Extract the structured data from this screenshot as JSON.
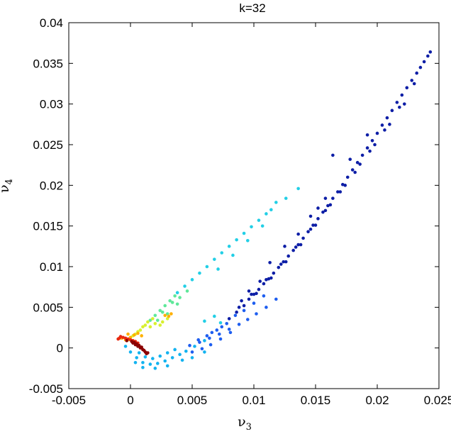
{
  "chart_data": {
    "type": "scatter",
    "title": "k=32",
    "xlabel": "ν",
    "xlabel_sub": "3",
    "ylabel": "ν",
    "ylabel_sub": "4",
    "xlim": [
      -0.005,
      0.025
    ],
    "ylim": [
      -0.005,
      0.04
    ],
    "xticks": [
      -0.005,
      0,
      0.005,
      0.01,
      0.015,
      0.02,
      0.025
    ],
    "xtick_labels": [
      "-0.005",
      "0",
      "0.005",
      "0.01",
      "0.015",
      "0.02",
      "0.025"
    ],
    "yticks": [
      -0.005,
      0,
      0.005,
      0.01,
      0.015,
      0.02,
      0.025,
      0.03,
      0.035,
      0.04
    ],
    "ytick_labels": [
      "-0.005",
      "0",
      "0.005",
      "0.01",
      "0.015",
      "0.02",
      "0.025",
      "0.03",
      "0.035",
      "0.04"
    ],
    "grid": false,
    "colormap": "jet",
    "colormap_stops": [
      "#00008f",
      "#0000ff",
      "#00ffff",
      "#ffff00",
      "#ff0000",
      "#800000"
    ],
    "series": [
      {
        "color": "#0d1ea6",
        "points": [
          [
            0.0243,
            0.0364
          ],
          [
            0.0241,
            0.0359
          ],
          [
            0.0238,
            0.0352
          ],
          [
            0.0235,
            0.0345
          ],
          [
            0.0232,
            0.0338
          ],
          [
            0.0228,
            0.0329
          ],
          [
            0.0224,
            0.032
          ],
          [
            0.022,
            0.0311
          ],
          [
            0.0216,
            0.0302
          ],
          [
            0.0212,
            0.0292
          ],
          [
            0.0208,
            0.0283
          ],
          [
            0.0204,
            0.0274
          ],
          [
            0.02,
            0.0264
          ],
          [
            0.0196,
            0.0255
          ],
          [
            0.0192,
            0.0246
          ],
          [
            0.0188,
            0.0237
          ],
          [
            0.0184,
            0.0228
          ],
          [
            0.018,
            0.0219
          ],
          [
            0.0176,
            0.021
          ],
          [
            0.0172,
            0.0201
          ],
          [
            0.0168,
            0.0192
          ],
          [
            0.0164,
            0.0184
          ],
          [
            0.016,
            0.0175
          ],
          [
            0.0156,
            0.0167
          ],
          [
            0.0152,
            0.0159
          ],
          [
            0.0148,
            0.0151
          ],
          [
            0.0144,
            0.0143
          ],
          [
            0.014,
            0.0135
          ],
          [
            0.0136,
            0.0127
          ],
          [
            0.0132,
            0.012
          ],
          [
            0.0128,
            0.0113
          ],
          [
            0.0124,
            0.0106
          ],
          [
            0.012,
            0.0099
          ],
          [
            0.0116,
            0.0092
          ],
          [
            0.0112,
            0.0085
          ],
          [
            0.0108,
            0.0079
          ],
          [
            0.0104,
            0.0072
          ],
          [
            0.01,
            0.0066
          ],
          [
            0.0096,
            0.006
          ],
          [
            0.0222,
            0.03
          ],
          [
            0.021,
            0.0275
          ],
          [
            0.0198,
            0.025
          ],
          [
            0.0186,
            0.0226
          ],
          [
            0.0174,
            0.02
          ],
          [
            0.0162,
            0.0176
          ],
          [
            0.015,
            0.0151
          ],
          [
            0.0138,
            0.0127
          ],
          [
            0.0126,
            0.0106
          ],
          [
            0.0114,
            0.0086
          ],
          [
            0.0102,
            0.0067
          ],
          [
            0.0092,
            0.0052
          ],
          [
            0.0086,
            0.0044
          ],
          [
            0.008,
            0.0036
          ],
          [
            0.023,
            0.0325
          ],
          [
            0.0218,
            0.0296
          ],
          [
            0.0206,
            0.0268
          ],
          [
            0.0194,
            0.0242
          ],
          [
            0.0182,
            0.0216
          ],
          [
            0.017,
            0.0192
          ],
          [
            0.0158,
            0.0169
          ],
          [
            0.0146,
            0.0146
          ],
          [
            0.0134,
            0.0124
          ],
          [
            0.0122,
            0.0103
          ],
          [
            0.011,
            0.0084
          ],
          [
            0.0098,
            0.0066
          ],
          [
            0.0088,
            0.005
          ],
          [
            0.0164,
            0.0237
          ],
          [
            0.0152,
            0.0172
          ],
          [
            0.0125,
            0.0125
          ],
          [
            0.0113,
            0.0105
          ],
          [
            0.0105,
            0.0082
          ],
          [
            0.0096,
            0.007
          ],
          [
            0.009,
            0.0058
          ],
          [
            0.0136,
            0.014
          ],
          [
            0.0146,
            0.0162
          ],
          [
            0.0158,
            0.0184
          ],
          [
            0.0178,
            0.0232
          ],
          [
            0.0192,
            0.0262
          ]
        ]
      },
      {
        "color": "#1e5ef0",
        "points": [
          [
            0.0118,
            0.006
          ],
          [
            0.011,
            0.005
          ],
          [
            0.0102,
            0.0042
          ],
          [
            0.0095,
            0.0035
          ],
          [
            0.0088,
            0.0029
          ],
          [
            0.008,
            0.0023
          ],
          [
            0.0072,
            0.0017
          ],
          [
            0.0064,
            0.0012
          ],
          [
            0.0056,
            0.0007
          ],
          [
            0.0048,
            0.0003
          ],
          [
            0.0085,
            0.004
          ],
          [
            0.0078,
            0.003
          ],
          [
            0.007,
            0.0022
          ],
          [
            0.0062,
            0.0015
          ],
          [
            0.0055,
            0.001
          ],
          [
            0.0092,
            0.0046
          ],
          [
            0.01,
            0.0055
          ],
          [
            0.0108,
            0.0064
          ],
          [
            0.0074,
            0.0026
          ],
          [
            0.0066,
            0.0019
          ],
          [
            0.0081,
            0.0019
          ],
          [
            0.0073,
            0.0011
          ],
          [
            0.0065,
            0.0004
          ],
          [
            0.0058,
            -0.0001
          ],
          [
            0.005,
            -0.0005
          ]
        ]
      },
      {
        "color": "#13b3f0",
        "points": [
          [
            0.004,
            -0.0008
          ],
          [
            0.0034,
            -0.0012
          ],
          [
            0.0028,
            -0.0016
          ],
          [
            0.0022,
            -0.0019
          ],
          [
            0.0016,
            -0.002
          ],
          [
            0.001,
            -0.0018
          ],
          [
            0.0005,
            -0.0012
          ],
          [
            0.0,
            -0.0005
          ],
          [
            -0.0004,
            0.0002
          ],
          [
            0.0045,
            -0.0004
          ],
          [
            0.0052,
            0.0002
          ],
          [
            0.006,
            0.0009
          ],
          [
            0.0036,
            -0.0002
          ],
          [
            0.003,
            -0.0006
          ],
          [
            0.0024,
            -0.001
          ],
          [
            0.0018,
            -0.0013
          ],
          [
            0.0012,
            -0.0011
          ],
          [
            0.0007,
            -0.0006
          ],
          [
            0.0042,
            -0.0015
          ],
          [
            0.003,
            -0.0022
          ],
          [
            0.002,
            -0.0025
          ],
          [
            0.001,
            -0.0024
          ],
          [
            0.0004,
            -0.0018
          ],
          [
            0.005,
            -0.0012
          ],
          [
            0.006,
            -0.0005
          ]
        ]
      },
      {
        "color": "#22cfe6",
        "points": [
          [
            0.0114,
            0.017
          ],
          [
            0.011,
            0.0165
          ],
          [
            0.0104,
            0.0157
          ],
          [
            0.0098,
            0.0149
          ],
          [
            0.0092,
            0.0141
          ],
          [
            0.0086,
            0.0133
          ],
          [
            0.008,
            0.0125
          ],
          [
            0.0074,
            0.0117
          ],
          [
            0.0068,
            0.0109
          ],
          [
            0.0062,
            0.01
          ],
          [
            0.0056,
            0.0092
          ],
          [
            0.005,
            0.0084
          ],
          [
            0.0044,
            0.0076
          ],
          [
            0.0038,
            0.0068
          ],
          [
            0.0136,
            0.0196
          ],
          [
            0.0126,
            0.0184
          ],
          [
            0.0118,
            0.0179
          ],
          [
            0.0107,
            0.015
          ],
          [
            0.0095,
            0.0132
          ],
          [
            0.0083,
            0.0114
          ],
          [
            0.0071,
            0.0097
          ],
          [
            0.0068,
            0.0039
          ],
          [
            0.0073,
            0.0031
          ],
          [
            0.006,
            0.0033
          ]
        ]
      },
      {
        "color": "#5fe89a",
        "points": [
          [
            0.0036,
            0.0064
          ],
          [
            0.0032,
            0.0058
          ],
          [
            0.0028,
            0.0052
          ],
          [
            0.0024,
            0.0046
          ],
          [
            0.002,
            0.004
          ],
          [
            0.0016,
            0.0034
          ],
          [
            0.004,
            0.0062
          ],
          [
            0.0034,
            0.0056
          ],
          [
            0.0026,
            0.0044
          ],
          [
            0.0046,
            0.007
          ],
          [
            0.0038,
            0.0054
          ],
          [
            0.003,
            0.0042
          ],
          [
            0.0022,
            0.0034
          ]
        ]
      },
      {
        "color": "#d8f030",
        "points": [
          [
            0.0014,
            0.0032
          ],
          [
            0.001,
            0.0026
          ],
          [
            0.0006,
            0.002
          ],
          [
            0.0002,
            0.0015
          ],
          [
            -0.0002,
            0.001
          ],
          [
            0.0018,
            0.0036
          ],
          [
            0.0012,
            0.0028
          ],
          [
            0.0008,
            0.0022
          ],
          [
            0.0004,
            0.0017
          ],
          [
            0.002,
            0.003
          ],
          [
            0.0016,
            0.0026
          ],
          [
            0.0026,
            0.0032
          ],
          [
            0.003,
            0.0036
          ],
          [
            0.0024,
            0.0028
          ]
        ]
      },
      {
        "color": "#ffb000",
        "points": [
          [
            0.0,
            0.0013
          ],
          [
            -0.0004,
            0.001
          ],
          [
            -0.0007,
            0.0012
          ],
          [
            0.0003,
            0.0016
          ],
          [
            0.0006,
            0.0018
          ],
          [
            -0.0002,
            0.0017
          ],
          [
            0.0009,
            0.0015
          ],
          [
            0.0033,
            0.0042
          ],
          [
            0.0031,
            0.0039
          ],
          [
            0.0028,
            0.004
          ]
        ]
      },
      {
        "color": "#e82a10",
        "points": [
          [
            -0.0009,
            0.0012
          ],
          [
            -0.0008,
            0.0014
          ],
          [
            -0.0006,
            0.0013
          ],
          [
            -0.0004,
            0.0012
          ],
          [
            -0.0002,
            0.0011
          ],
          [
            0.0,
            0.001
          ],
          [
            0.0002,
            0.0009
          ],
          [
            -0.001,
            0.0011
          ],
          [
            0.0004,
            0.0008
          ],
          [
            0.0006,
            0.0006
          ]
        ]
      },
      {
        "color": "#8b0000",
        "points": [
          [
            0.0002,
            0.0006
          ],
          [
            0.0004,
            0.0004
          ],
          [
            0.0006,
            0.0002
          ],
          [
            0.0008,
            0.0
          ],
          [
            0.001,
            -0.0002
          ],
          [
            0.0012,
            -0.0005
          ],
          [
            0.0001,
            0.0008
          ],
          [
            0.0005,
            0.0005
          ],
          [
            0.0009,
            0.0001
          ],
          [
            0.0013,
            -0.0007
          ],
          [
            0.0011,
            -0.0003
          ],
          [
            0.0007,
            0.0003
          ],
          [
            -0.0003,
            0.0009
          ],
          [
            0.0003,
            0.0007
          ],
          [
            0.0014,
            -0.0006
          ]
        ]
      }
    ]
  }
}
